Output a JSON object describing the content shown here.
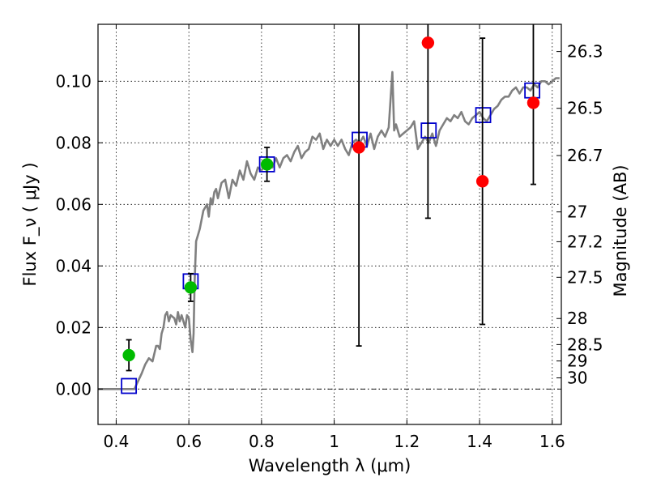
{
  "chart_data": {
    "type": "scatter",
    "title": "",
    "xlabel": "Wavelength  λ (μm)",
    "ylabel": "Flux  F_ν  ( μJy )",
    "ylabel_right": "Magnitude (AB)",
    "xlim": [
      0.35,
      1.625
    ],
    "ylim": [
      -0.0115,
      0.1185
    ],
    "grid": true,
    "legend": "none",
    "x_ticks": [
      0.4,
      0.6,
      0.8,
      1.0,
      1.2,
      1.4,
      1.6
    ],
    "x_tick_labels": [
      "0.4",
      "0.6",
      "0.8",
      "1",
      "1.2",
      "1.4",
      "1.6"
    ],
    "y_ticks": [
      0.0,
      0.02,
      0.04,
      0.06,
      0.08,
      0.1
    ],
    "y_tick_labels": [
      "0.00",
      "0.02",
      "0.04",
      "0.06",
      "0.08",
      "0.10"
    ],
    "mag_ticks": [
      26.3,
      26.5,
      26.7,
      27,
      27.2,
      27.5,
      28,
      28.5,
      29,
      30
    ],
    "mag_tick_labels": [
      "26.3",
      "26.5",
      "26.7",
      "27",
      "27.2",
      "27.5",
      "28",
      "28.5",
      "29",
      "30"
    ],
    "colors": {
      "model_line": "#808080",
      "model_squares": "#0000cc",
      "green_points": "#00bb00",
      "red_points": "#ff0000",
      "error_bars": "#000000",
      "zero_line": "#000000"
    },
    "series": [
      {
        "kind": "line",
        "x": [
          0.35,
          0.45,
          0.47,
          0.48,
          0.49,
          0.5,
          0.51,
          0.515,
          0.52,
          0.525,
          0.53,
          0.535,
          0.54,
          0.545,
          0.55,
          0.56,
          0.565,
          0.57,
          0.575,
          0.58,
          0.59,
          0.595,
          0.6,
          0.605,
          0.61,
          0.613,
          0.616,
          0.62,
          0.625,
          0.63,
          0.64,
          0.65,
          0.655,
          0.66,
          0.665,
          0.67,
          0.675,
          0.68,
          0.69,
          0.7,
          0.71,
          0.72,
          0.73,
          0.74,
          0.75,
          0.76,
          0.77,
          0.78,
          0.79,
          0.8,
          0.81,
          0.82,
          0.83,
          0.84,
          0.85,
          0.86,
          0.87,
          0.88,
          0.89,
          0.9,
          0.91,
          0.92,
          0.93,
          0.94,
          0.95,
          0.96,
          0.97,
          0.98,
          0.99,
          1.0,
          1.01,
          1.02,
          1.03,
          1.04,
          1.05,
          1.06,
          1.07,
          1.08,
          1.09,
          1.1,
          1.11,
          1.12,
          1.13,
          1.14,
          1.15,
          1.16,
          1.165,
          1.17,
          1.18,
          1.19,
          1.2,
          1.21,
          1.22,
          1.23,
          1.24,
          1.25,
          1.26,
          1.27,
          1.28,
          1.29,
          1.3,
          1.31,
          1.32,
          1.33,
          1.34,
          1.35,
          1.36,
          1.37,
          1.38,
          1.39,
          1.4,
          1.41,
          1.42,
          1.43,
          1.44,
          1.45,
          1.46,
          1.47,
          1.48,
          1.49,
          1.5,
          1.51,
          1.52,
          1.53,
          1.54,
          1.55,
          1.56,
          1.57,
          1.58,
          1.59,
          1.6,
          1.61,
          1.62
        ],
        "y": [
          0.0,
          0.0,
          0.005,
          0.008,
          0.01,
          0.009,
          0.014,
          0.014,
          0.013,
          0.018,
          0.02,
          0.024,
          0.025,
          0.022,
          0.024,
          0.023,
          0.021,
          0.025,
          0.022,
          0.024,
          0.02,
          0.024,
          0.023,
          0.016,
          0.012,
          0.018,
          0.035,
          0.048,
          0.05,
          0.052,
          0.058,
          0.06,
          0.056,
          0.062,
          0.06,
          0.064,
          0.065,
          0.062,
          0.067,
          0.068,
          0.062,
          0.068,
          0.066,
          0.071,
          0.068,
          0.074,
          0.07,
          0.068,
          0.072,
          0.071,
          0.073,
          0.074,
          0.072,
          0.075,
          0.072,
          0.075,
          0.076,
          0.074,
          0.077,
          0.079,
          0.075,
          0.077,
          0.078,
          0.082,
          0.081,
          0.083,
          0.078,
          0.081,
          0.079,
          0.081,
          0.079,
          0.081,
          0.078,
          0.076,
          0.08,
          0.081,
          0.08,
          0.082,
          0.079,
          0.083,
          0.078,
          0.082,
          0.084,
          0.082,
          0.085,
          0.103,
          0.084,
          0.086,
          0.082,
          0.083,
          0.084,
          0.085,
          0.087,
          0.078,
          0.08,
          0.082,
          0.08,
          0.083,
          0.079,
          0.084,
          0.086,
          0.088,
          0.087,
          0.089,
          0.088,
          0.09,
          0.087,
          0.086,
          0.088,
          0.089,
          0.09,
          0.088,
          0.087,
          0.089,
          0.091,
          0.092,
          0.094,
          0.095,
          0.095,
          0.097,
          0.098,
          0.096,
          0.098,
          0.098,
          0.097,
          0.099,
          0.098,
          0.1,
          0.1,
          0.099,
          0.1,
          0.101,
          0.101
        ]
      },
      {
        "kind": "squares",
        "x": [
          0.435,
          0.605,
          0.815,
          1.07,
          1.26,
          1.41,
          1.545
        ],
        "y": [
          0.001,
          0.035,
          0.073,
          0.081,
          0.084,
          0.089,
          0.097
        ]
      },
      {
        "kind": "points_with_errors",
        "color_key": "green_points",
        "x": [
          0.435,
          0.605,
          0.815
        ],
        "y": [
          0.011,
          0.033,
          0.073
        ],
        "yerr": [
          0.005,
          0.0045,
          0.0055
        ]
      },
      {
        "kind": "points_with_errors",
        "color_key": "red_points",
        "x": [
          1.068,
          1.258,
          1.408,
          1.548
        ],
        "y": [
          0.0785,
          0.1125,
          0.0675,
          0.093
        ],
        "yerr": [
          0.0645,
          0.057,
          0.0465,
          0.0265
        ]
      }
    ]
  }
}
